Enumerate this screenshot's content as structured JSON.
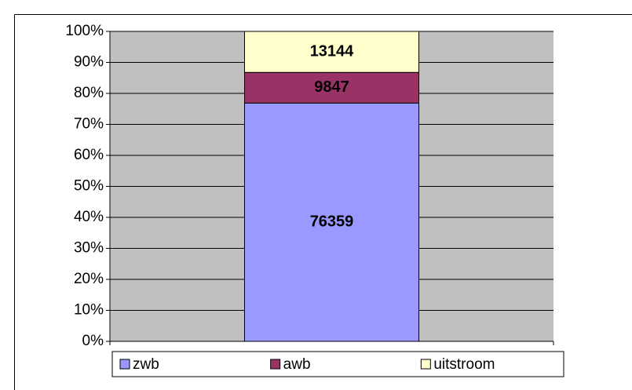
{
  "chart_data": {
    "type": "bar",
    "stack": "percent",
    "categories": [
      null
    ],
    "series": [
      {
        "name": "zwb",
        "color": "#9999ff",
        "values": [
          76359
        ]
      },
      {
        "name": "awb",
        "color": "#993366",
        "values": [
          9847
        ]
      },
      {
        "name": "uitstroom",
        "color": "#ffffcc",
        "values": [
          13144
        ]
      }
    ],
    "ylim": [
      0,
      100
    ],
    "yticks": [
      {
        "value": 0,
        "label": "0%"
      },
      {
        "value": 10,
        "label": "10%"
      },
      {
        "value": 20,
        "label": "20%"
      },
      {
        "value": 30,
        "label": "30%"
      },
      {
        "value": 40,
        "label": "40%"
      },
      {
        "value": 50,
        "label": "50%"
      },
      {
        "value": 60,
        "label": "60%"
      },
      {
        "value": 70,
        "label": "70%"
      },
      {
        "value": 80,
        "label": "80%"
      },
      {
        "value": 90,
        "label": "90%"
      },
      {
        "value": 100,
        "label": "100%"
      }
    ],
    "grid": true,
    "plot_background": "#c0c0c0",
    "legend": "bottom"
  }
}
